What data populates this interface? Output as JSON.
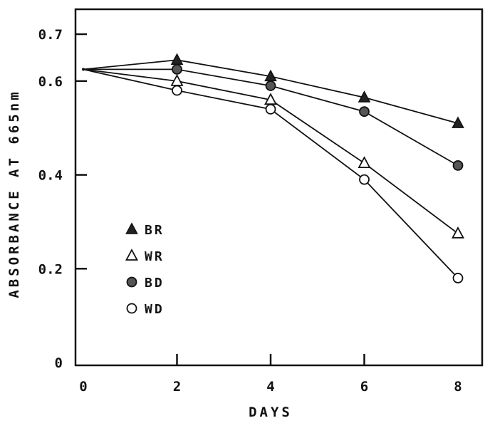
{
  "chart_data": {
    "type": "line",
    "xlabel": "DAYS",
    "ylabel": "ABSORBANCE AT 665nm",
    "x": [
      0,
      2,
      4,
      6,
      8
    ],
    "xlim": [
      0,
      8
    ],
    "ylim": [
      0,
      0.7
    ],
    "x_ticks": [
      "0",
      "2",
      "4",
      "6",
      "8"
    ],
    "y_ticks": [
      {
        "value": 0,
        "label": "0"
      },
      {
        "value": 0.2,
        "label": "0.2"
      },
      {
        "value": 0.4,
        "label": "0.4"
      },
      {
        "value": 0.6,
        "label": "0.6"
      },
      {
        "value": 0.7,
        "label": "0.7"
      }
    ],
    "grid": false,
    "legend_position": "left",
    "series": [
      {
        "name": "BR",
        "marker": "filled-triangle",
        "values": [
          0.625,
          0.645,
          0.61,
          0.565,
          0.51
        ]
      },
      {
        "name": "WR",
        "marker": "open-triangle",
        "values": [
          0.625,
          0.6,
          0.56,
          0.425,
          0.275
        ]
      },
      {
        "name": "BD",
        "marker": "filled-circle",
        "values": [
          0.625,
          0.625,
          0.59,
          0.535,
          0.42
        ]
      },
      {
        "name": "WD",
        "marker": "open-circle",
        "values": [
          0.625,
          0.58,
          0.54,
          0.39,
          0.18
        ]
      }
    ]
  }
}
